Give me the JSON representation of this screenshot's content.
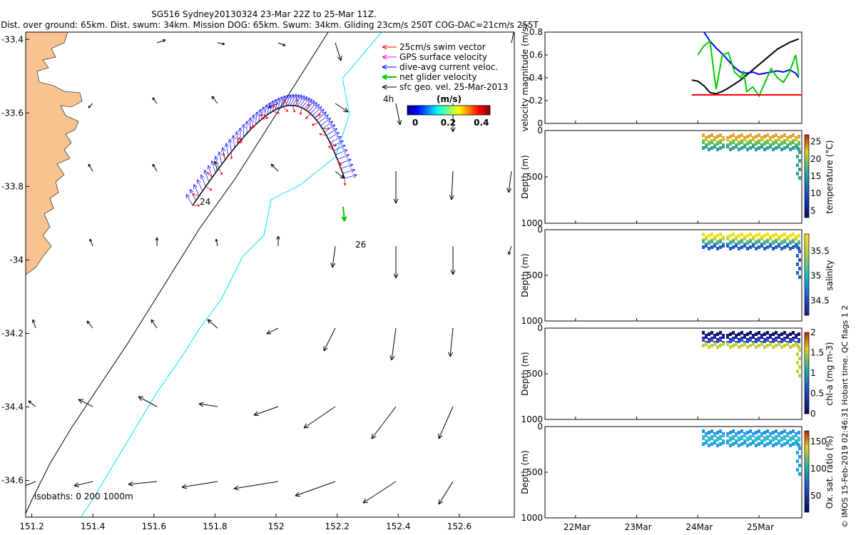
{
  "title": {
    "line1": "SG516 Sydney20130324 23-Mar 22Z to 25-Mar 11Z.",
    "line2": "Dist. over ground: 65km. Dist. swum: 34km. Mission DOG: 65km. Swum: 34km. Gliding 23cm/s 250T COG-DAC=21cm/s 255T"
  },
  "map": {
    "xticks": [
      "151.2",
      "151.4",
      "151.6",
      "151.8",
      "152",
      "152.2",
      "152.4",
      "152.6"
    ],
    "xtick_values": [
      151.2,
      151.4,
      151.6,
      151.8,
      152.0,
      152.2,
      152.4,
      152.6
    ],
    "yticks": [
      "-33.4",
      "-33.6",
      "-33.8",
      "-34",
      "-34.2",
      "-34.4",
      "-34.6"
    ],
    "ytick_values": [
      -33.4,
      -33.6,
      -33.8,
      -34.0,
      -34.2,
      -34.4,
      -34.6
    ],
    "xlim": [
      151.18,
      152.78
    ],
    "ylim": [
      -34.7,
      -33.38
    ],
    "land_color": "#f8c38f",
    "isobath_text": "isobaths: 0   200   1000m",
    "track_labels": [
      {
        "text": "24",
        "lon": 151.77,
        "lat": -33.86
      },
      {
        "text": "26",
        "lon": 152.27,
        "lat": -33.99
      }
    ],
    "legend": [
      {
        "text": "25cm/s swim vector",
        "color": "#ff0000"
      },
      {
        "text": "GPS surface velocity",
        "color": "#ff00ff"
      },
      {
        "text": "dive-avg current veloc.",
        "color": "#0000ff"
      },
      {
        "text": "net glider velocity",
        "color": "#00cc00"
      },
      {
        "text": "sfc geo. vel. 25-Mar-2013",
        "color": "#000000"
      }
    ],
    "legend_extra": "4h",
    "colorbar": {
      "label": "(m/s)",
      "ticks": [
        "0",
        "0.2",
        "0.4"
      ],
      "range": [
        0,
        0.5
      ]
    }
  },
  "chart_data": [
    {
      "type": "line",
      "title": "",
      "ylabel": "velocity magnitude (m/s)",
      "ylim": [
        0,
        0.8
      ],
      "yticks": [
        "0",
        "0.2",
        "0.4",
        "0.6",
        "0.8"
      ],
      "x_unit": "days (Mar 2013)",
      "xlim": [
        21.5,
        25.7
      ],
      "series": [
        {
          "color": "#000000",
          "x": [
            23.9,
            24.0,
            24.1,
            24.2,
            24.3,
            24.4,
            24.5,
            24.7,
            24.9,
            25.1,
            25.3,
            25.5,
            25.65
          ],
          "y": [
            0.38,
            0.37,
            0.33,
            0.27,
            0.26,
            0.28,
            0.31,
            0.38,
            0.47,
            0.56,
            0.65,
            0.71,
            0.74
          ]
        },
        {
          "color": "#0000ff",
          "x": [
            24.1,
            24.2,
            24.3,
            24.4,
            24.5,
            24.6,
            24.7,
            24.8,
            24.9,
            25.0,
            25.1,
            25.2,
            25.3,
            25.4,
            25.5,
            25.6,
            25.65
          ],
          "y": [
            0.8,
            0.72,
            0.66,
            0.61,
            0.55,
            0.49,
            0.45,
            0.44,
            0.45,
            0.43,
            0.44,
            0.45,
            0.46,
            0.45,
            0.47,
            0.44,
            0.4
          ]
        },
        {
          "color": "#00cc00",
          "x": [
            24.0,
            24.1,
            24.2,
            24.25,
            24.3,
            24.35,
            24.4,
            24.5,
            24.6,
            24.7,
            24.75,
            24.8,
            24.9,
            25.0,
            25.1,
            25.2,
            25.3,
            25.4,
            25.5,
            25.6,
            25.65
          ],
          "y": [
            0.6,
            0.68,
            0.72,
            0.5,
            0.3,
            0.45,
            0.6,
            0.62,
            0.45,
            0.4,
            0.45,
            0.28,
            0.32,
            0.24,
            0.36,
            0.48,
            0.4,
            0.36,
            0.45,
            0.6,
            0.42
          ]
        },
        {
          "color": "#ff0000",
          "x": [
            23.9,
            25.7
          ],
          "y": [
            0.25,
            0.25
          ]
        }
      ]
    },
    {
      "type": "heatmap",
      "ylabel": "Depth (m)",
      "ylim": [
        1000,
        0
      ],
      "yticks": [
        "0",
        "500",
        "1000"
      ],
      "colorbar_label": "temperature (°C)",
      "colorbar_ticks": [
        "5",
        "10",
        "15",
        "20",
        "25"
      ],
      "colorbar_range": [
        3,
        27
      ]
    },
    {
      "type": "heatmap",
      "ylabel": "Depth (m)",
      "ylim": [
        1000,
        0
      ],
      "yticks": [
        "0",
        "500",
        "1000"
      ],
      "colorbar_label": "salinity",
      "colorbar_ticks": [
        "34.5",
        "35",
        "35.5"
      ],
      "colorbar_range": [
        34.2,
        35.85
      ]
    },
    {
      "type": "heatmap",
      "ylabel": "Depth (m)",
      "ylim": [
        1000,
        0
      ],
      "yticks": [
        "0",
        "500",
        "1000"
      ],
      "colorbar_label": "chl-a (mg m-3)",
      "colorbar_ticks": [
        "0",
        "0.5",
        "1",
        "1.5",
        "2"
      ],
      "colorbar_range": [
        0,
        2
      ]
    },
    {
      "type": "heatmap",
      "ylabel": "Depth (m)",
      "ylim": [
        1000,
        0
      ],
      "yticks": [
        "0",
        "500",
        "1000"
      ],
      "colorbar_label": "Ox. sat. ratio (%)",
      "colorbar_ticks": [
        "50",
        "100",
        "150"
      ],
      "colorbar_range": [
        20,
        170
      ]
    }
  ],
  "time_axis": {
    "ticks": [
      "22Mar",
      "23Mar",
      "24Mar",
      "25Mar"
    ],
    "values": [
      22,
      23,
      24,
      25
    ]
  },
  "footer": "© IMOS 15-Feb-2019 02:46:31 Hobart time. QC flags 1  2"
}
